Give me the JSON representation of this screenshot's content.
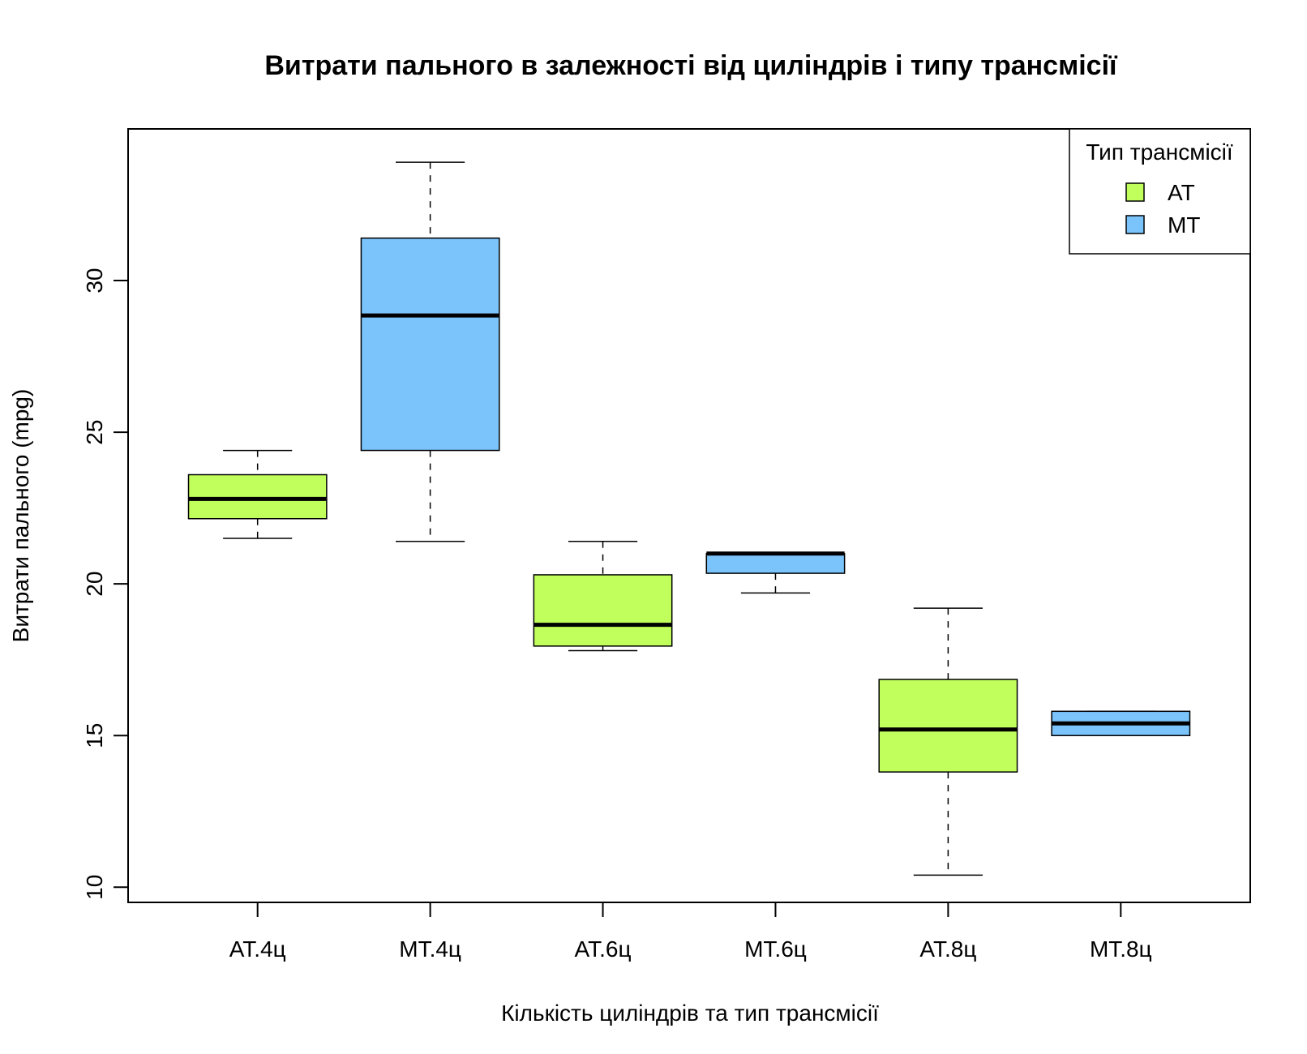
{
  "chart_data": {
    "type": "box",
    "title": "Витрати пального в залежності від циліндрів і типу трансмісії",
    "xlabel": "Кількість циліндрів та тип трансмісії",
    "ylabel": "Витрати пального (mpg)",
    "ylim": [
      9.5,
      35
    ],
    "yticks": [
      10,
      15,
      20,
      25,
      30
    ],
    "categories": [
      "AT.4ц",
      "MT.4ц",
      "AT.6ц",
      "MT.6ц",
      "AT.8ц",
      "MT.8ц"
    ],
    "boxes": [
      {
        "category": "AT.4ц",
        "group": "AT",
        "whisker_low": 21.5,
        "q1": 22.15,
        "median": 22.8,
        "q3": 23.6,
        "whisker_high": 24.4
      },
      {
        "category": "MT.4ц",
        "group": "MT",
        "whisker_low": 21.4,
        "q1": 24.4,
        "median": 28.85,
        "q3": 31.4,
        "whisker_high": 33.9
      },
      {
        "category": "AT.6ц",
        "group": "AT",
        "whisker_low": 17.8,
        "q1": 17.95,
        "median": 18.65,
        "q3": 20.3,
        "whisker_high": 21.4
      },
      {
        "category": "MT.6ц",
        "group": "MT",
        "whisker_low": 19.7,
        "q1": 20.35,
        "median": 21.0,
        "q3": 21.0,
        "whisker_high": 21.0
      },
      {
        "category": "AT.8ц",
        "group": "AT",
        "whisker_low": 10.4,
        "q1": 13.8,
        "median": 15.2,
        "q3": 16.85,
        "whisker_high": 19.2
      },
      {
        "category": "MT.8ц",
        "group": "MT",
        "whisker_low": 15.0,
        "q1": 15.0,
        "median": 15.4,
        "q3": 15.8,
        "whisker_high": 15.8
      }
    ],
    "legend": {
      "title": "Тип трансмісії",
      "position": "top-right",
      "entries": [
        {
          "name": "AT",
          "color": "#c0ff5c"
        },
        {
          "name": "MT",
          "color": "#7ac3fb"
        }
      ]
    },
    "colors": {
      "AT": "#c0ff5c",
      "MT": "#7ac3fb"
    },
    "grid": false
  }
}
